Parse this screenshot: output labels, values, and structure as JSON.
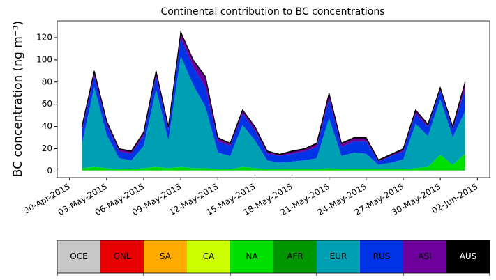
{
  "chart_data": {
    "type": "stacked_area",
    "title": "Continental contribution to BC concentrations",
    "y_label": "BC concentration (ng m⁻³)",
    "x": [
      "2015-05-01",
      "2015-05-02",
      "2015-05-03",
      "2015-05-04",
      "2015-05-05",
      "2015-05-06",
      "2015-05-07",
      "2015-05-08",
      "2015-05-09",
      "2015-05-10",
      "2015-05-11",
      "2015-05-12",
      "2015-05-13",
      "2015-05-14",
      "2015-05-15",
      "2015-05-16",
      "2015-05-17",
      "2015-05-18",
      "2015-05-19",
      "2015-05-20",
      "2015-05-21",
      "2015-05-22",
      "2015-05-23",
      "2015-05-24",
      "2015-05-25",
      "2015-05-26",
      "2015-05-27",
      "2015-05-28",
      "2015-05-29",
      "2015-05-30",
      "2015-05-31",
      "2015-06-01"
    ],
    "series": [
      {
        "name": "OCE",
        "color": "#c8c8c8",
        "values": [
          0.5,
          0.5,
          0.5,
          0.5,
          0.5,
          0.5,
          0.5,
          0.5,
          0.5,
          0.5,
          0.5,
          0.5,
          0.5,
          0.5,
          0.5,
          0.5,
          0.5,
          0.5,
          0.5,
          0.5,
          0.5,
          0.5,
          0.5,
          0.5,
          0.5,
          0.5,
          0.5,
          0.5,
          0.5,
          0.5,
          0.5,
          0.5
        ]
      },
      {
        "name": "GNL",
        "color": "#e60000",
        "values": [
          0,
          0,
          0,
          0,
          0,
          0,
          0,
          0,
          0,
          0,
          0,
          0,
          0,
          0,
          0,
          0,
          0,
          0,
          0,
          0,
          0,
          0,
          0,
          0,
          0,
          0,
          0,
          0,
          0,
          0,
          0,
          0
        ]
      },
      {
        "name": "SA",
        "color": "#ffaa00",
        "values": [
          0,
          0,
          0,
          0,
          0,
          0,
          0,
          0,
          0,
          0,
          0,
          0,
          0,
          0,
          0,
          0,
          0,
          0,
          0,
          0,
          0,
          0,
          0,
          0,
          0,
          0,
          0,
          0,
          0,
          0,
          0,
          0
        ]
      },
      {
        "name": "CA",
        "color": "#ccff00",
        "values": [
          0,
          0,
          0,
          0,
          0,
          0,
          0,
          0,
          0,
          0,
          0,
          0,
          0,
          0,
          0,
          0,
          0,
          0,
          0,
          0,
          0,
          0,
          0,
          0,
          0,
          0,
          0,
          0,
          0,
          0,
          0,
          0
        ]
      },
      {
        "name": "NA",
        "color": "#00e000",
        "values": [
          2,
          3,
          2,
          1,
          1,
          2,
          3,
          2,
          3,
          2,
          2,
          1,
          1,
          3,
          2,
          1,
          1,
          1,
          1,
          1,
          2,
          1,
          1,
          1,
          1,
          1,
          1,
          2,
          3,
          14,
          5,
          15
        ]
      },
      {
        "name": "AFR",
        "color": "#009600",
        "values": [
          0,
          0,
          0,
          0,
          0,
          0,
          0,
          0,
          0,
          0,
          0,
          0,
          0,
          0,
          0,
          0,
          0,
          0,
          0,
          0,
          0,
          0,
          0,
          0,
          0,
          0,
          0,
          0,
          0,
          0,
          0,
          0
        ]
      },
      {
        "name": "EUR",
        "color": "#00a0b4",
        "values": [
          22,
          72,
          30,
          10,
          8,
          20,
          70,
          25,
          100,
          75,
          55,
          15,
          12,
          38,
          25,
          8,
          6,
          7,
          8,
          10,
          45,
          12,
          15,
          14,
          4,
          6,
          9,
          40,
          28,
          50,
          25,
          38
        ]
      },
      {
        "name": "RUS",
        "color": "#0032e6",
        "values": [
          12,
          10,
          9,
          6,
          6,
          9,
          12,
          9,
          16,
          16,
          18,
          10,
          9,
          10,
          9,
          6,
          6,
          7,
          8,
          10,
          17,
          8,
          10,
          11,
          3,
          6,
          7,
          9,
          8,
          8,
          7,
          20
        ]
      },
      {
        "name": "ASI",
        "color": "#6e009b",
        "values": [
          3,
          4,
          3,
          2,
          2,
          3,
          4,
          3,
          5,
          6,
          9,
          3,
          2,
          3,
          3,
          2,
          1,
          2,
          2,
          3,
          5,
          3,
          3,
          3,
          1,
          1,
          2,
          3,
          2,
          2,
          2,
          6
        ]
      },
      {
        "name": "AUS",
        "color": "#000000",
        "values": [
          0.5,
          0.5,
          0.5,
          0.5,
          0.5,
          0.5,
          0.5,
          0.5,
          0.5,
          0.5,
          0.5,
          0.5,
          0.5,
          0.5,
          0.5,
          0.5,
          0.5,
          0.5,
          0.5,
          0.5,
          0.5,
          0.5,
          0.5,
          0.5,
          0.5,
          0.5,
          0.5,
          0.5,
          0.5,
          0.5,
          0.5,
          0.5
        ]
      }
    ],
    "xlim": [
      "2015-04-29",
      "2015-06-03"
    ],
    "xticks": [
      {
        "value": "2015-04-30",
        "label": "30-Apr-2015"
      },
      {
        "value": "2015-05-03",
        "label": "03-May-2015"
      },
      {
        "value": "2015-05-06",
        "label": "06-May-2015"
      },
      {
        "value": "2015-05-09",
        "label": "09-May-2015"
      },
      {
        "value": "2015-05-12",
        "label": "12-May-2015"
      },
      {
        "value": "2015-05-15",
        "label": "15-May-2015"
      },
      {
        "value": "2015-05-18",
        "label": "18-May-2015"
      },
      {
        "value": "2015-05-21",
        "label": "21-May-2015"
      },
      {
        "value": "2015-05-24",
        "label": "24-May-2015"
      },
      {
        "value": "2015-05-27",
        "label": "27-May-2015"
      },
      {
        "value": "2015-05-30",
        "label": "30-May-2015"
      },
      {
        "value": "2015-06-02",
        "label": "02-Jun-2015"
      }
    ],
    "ylim": [
      -6,
      135
    ],
    "yticks": [
      0,
      20,
      40,
      60,
      80,
      100,
      120
    ]
  }
}
